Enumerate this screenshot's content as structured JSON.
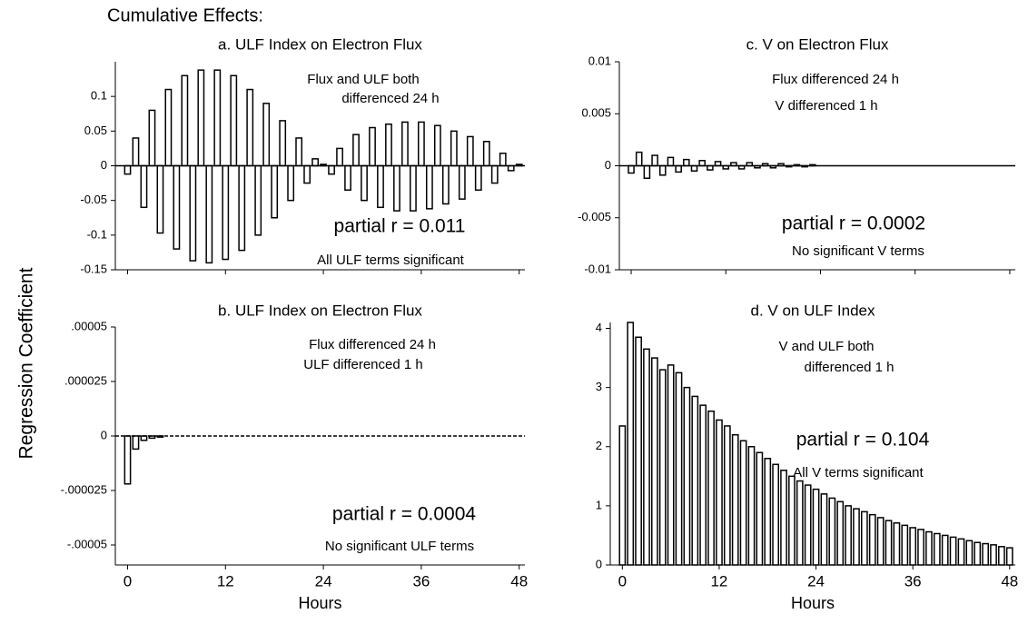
{
  "title": "Cumulative Effects:",
  "ylabel": "Regression Coefficient",
  "chart_data": [
    {
      "type": "bar",
      "title": "a. ULF Index on Electron Flux",
      "color": "#ffffff",
      "edgecolor": "#000000",
      "annotations": [
        "Flux and ULF both",
        "differenced 24 h",
        "partial r = 0.011",
        "All ULF terms significant"
      ],
      "x": [
        0,
        1,
        2,
        3,
        4,
        5,
        6,
        7,
        8,
        9,
        10,
        11,
        12,
        13,
        14,
        15,
        16,
        17,
        18,
        19,
        20,
        21,
        22,
        23,
        24,
        25,
        26,
        27,
        28,
        29,
        30,
        31,
        32,
        33,
        34,
        35,
        36,
        37,
        38,
        39,
        40,
        41,
        42,
        43,
        44,
        45,
        46,
        47,
        48
      ],
      "values": [
        -0.012,
        0.04,
        -0.06,
        0.08,
        -0.097,
        0.11,
        -0.12,
        0.13,
        -0.137,
        0.138,
        -0.14,
        0.138,
        -0.135,
        0.13,
        -0.122,
        0.11,
        -0.1,
        0.09,
        -0.075,
        0.065,
        -0.05,
        0.04,
        -0.025,
        0.01,
        0.002,
        -0.012,
        0.025,
        -0.035,
        0.045,
        -0.05,
        0.055,
        -0.06,
        0.06,
        -0.065,
        0.063,
        -0.065,
        0.063,
        -0.062,
        0.058,
        -0.055,
        0.05,
        -0.048,
        0.042,
        -0.035,
        0.035,
        -0.025,
        0.018,
        -0.007,
        0.002
      ],
      "xlim": [
        -1.5,
        48.7
      ],
      "xticks": [
        0,
        12,
        24,
        36,
        48
      ],
      "show_xtick_labels": false,
      "ylim": [
        -0.15,
        0.15
      ],
      "yticks": [
        -0.15,
        -0.1,
        -0.05,
        0,
        0.05,
        0.1
      ]
    },
    {
      "type": "bar",
      "title": "c. V on Electron Flux",
      "color": "#ffffff",
      "edgecolor": "#000000",
      "annotations": [
        "Flux differenced 24 h",
        "V differenced 1 h",
        "partial r = 0.0002",
        "No significant V terms"
      ],
      "x": [
        0,
        1,
        2,
        3,
        4,
        5,
        6,
        7,
        8,
        9,
        10,
        11,
        12,
        13,
        14,
        15,
        16,
        17,
        18,
        19,
        20,
        21,
        22,
        23,
        24,
        25,
        26,
        27,
        28,
        29,
        30,
        31,
        32,
        33,
        34,
        35,
        36,
        37,
        38,
        39,
        40,
        41,
        42,
        43,
        44,
        45,
        46,
        47,
        48
      ],
      "values": [
        -0.0007,
        0.0013,
        -0.0012,
        0.001,
        -0.0009,
        0.0008,
        -0.0006,
        0.0006,
        -0.0005,
        0.0005,
        -0.0004,
        0.0004,
        -0.0003,
        0.0003,
        -0.0003,
        0.0003,
        -0.0002,
        0.0002,
        -0.0002,
        0.0002,
        -0.0001,
        0.0001,
        -0.0001,
        0.0001,
        0,
        0,
        0,
        0,
        0,
        0,
        0,
        0,
        0,
        0,
        0,
        0,
        0,
        0,
        0,
        0,
        0,
        0,
        0,
        0,
        0,
        0,
        0,
        0,
        0
      ],
      "xlim": [
        -1.5,
        48.7
      ],
      "xticks": [
        0,
        12,
        24,
        36,
        48
      ],
      "show_xtick_labels": false,
      "ylim": [
        -0.01,
        0.01
      ],
      "yticks": [
        -0.01,
        -0.005,
        0,
        0.005,
        0.01
      ]
    },
    {
      "type": "bar",
      "title": "b. ULF Index on Electron Flux",
      "color": "#ffffff",
      "edgecolor": "#000000",
      "xlabel": "Hours",
      "annotations": [
        "Flux differenced 24 h",
        "ULF differenced 1 h",
        "partial r = 0.0004",
        "No significant ULF terms"
      ],
      "x": [
        0,
        1,
        2,
        3,
        4,
        5,
        6,
        7,
        8,
        9,
        10,
        11,
        12,
        13,
        14,
        15,
        16,
        17,
        18,
        19,
        20,
        21,
        22,
        23,
        24,
        25,
        26,
        27,
        28,
        29,
        30,
        31,
        32,
        33,
        34,
        35,
        36,
        37,
        38,
        39,
        40,
        41,
        42,
        43,
        44,
        45,
        46,
        47,
        48
      ],
      "values": [
        -2.2e-05,
        -6e-06,
        -2e-06,
        -1e-06,
        -5e-07,
        0,
        0,
        0,
        0,
        0,
        0,
        0,
        0,
        0,
        0,
        0,
        0,
        0,
        0,
        0,
        0,
        0,
        0,
        0,
        0,
        0,
        0,
        0,
        0,
        0,
        0,
        0,
        0,
        0,
        0,
        0,
        0,
        0,
        0,
        0,
        0,
        0,
        0,
        0,
        0,
        0,
        0,
        0,
        0
      ],
      "xlim": [
        -1.5,
        48.7
      ],
      "xticks": [
        0,
        12,
        24,
        36,
        48
      ],
      "show_xtick_labels": true,
      "ylim": [
        -5e-05,
        5e-05
      ],
      "yticks": [
        {
          "value": -5e-05,
          "label": "-.00005"
        },
        {
          "value": -2.5e-05,
          "label": "-.000025"
        },
        0,
        {
          "value": 2.5e-05,
          "label": ".000025"
        },
        {
          "value": 5e-05,
          "label": ".00005"
        }
      ]
    },
    {
      "type": "bar",
      "title": "d. V on ULF Index",
      "color": "#ffffff",
      "edgecolor": "#000000",
      "xlabel": "Hours",
      "annotations": [
        "V and ULF both",
        "differenced 1 h",
        "partial r = 0.104",
        "All V terms significant"
      ],
      "x": [
        0,
        1,
        2,
        3,
        4,
        5,
        6,
        7,
        8,
        9,
        10,
        11,
        12,
        13,
        14,
        15,
        16,
        17,
        18,
        19,
        20,
        21,
        22,
        23,
        24,
        25,
        26,
        27,
        28,
        29,
        30,
        31,
        32,
        33,
        34,
        35,
        36,
        37,
        38,
        39,
        40,
        41,
        42,
        43,
        44,
        45,
        46,
        47,
        48
      ],
      "values": [
        2.35,
        4.1,
        3.85,
        3.65,
        3.5,
        3.3,
        3.38,
        3.25,
        3.0,
        2.85,
        2.7,
        2.6,
        2.45,
        2.35,
        2.2,
        2.1,
        2.0,
        1.9,
        1.8,
        1.7,
        1.6,
        1.5,
        1.42,
        1.35,
        1.28,
        1.2,
        1.13,
        1.07,
        1.0,
        0.95,
        0.9,
        0.85,
        0.8,
        0.75,
        0.71,
        0.67,
        0.63,
        0.6,
        0.56,
        0.53,
        0.5,
        0.47,
        0.44,
        0.41,
        0.38,
        0.36,
        0.34,
        0.31,
        0.29
      ],
      "xlim": [
        -1.5,
        48.7
      ],
      "xticks": [
        0,
        12,
        24,
        36,
        48
      ],
      "show_xtick_labels": true,
      "ylim": [
        0,
        4.1
      ],
      "yticks": [
        0,
        1,
        2,
        3,
        4
      ]
    }
  ]
}
